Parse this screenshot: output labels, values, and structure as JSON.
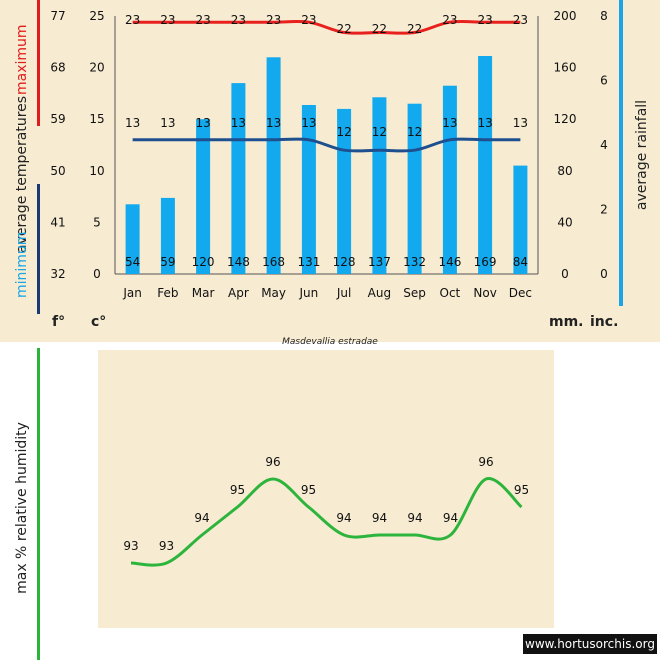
{
  "colors": {
    "paper": "#f7ecd2",
    "bar": "#12a9ee",
    "max_line": "#e8201e",
    "min_line": "#1e4f8f",
    "humidity_line": "#2db43c",
    "left_red_bar": "#e21c1c",
    "left_navy_bar": "#1b3a75",
    "right_blue_bar": "#1aa6e6",
    "humidity_bar": "#2ab43a",
    "watermark_bg": "#111111"
  },
  "labels": {
    "maximum": "maximum",
    "average_temperatures": "average  temperatures",
    "minimum": "minimum",
    "average_rainfall": "average rainfall",
    "unit_f": "f°",
    "unit_c": "c°",
    "unit_mm": "mm.",
    "unit_inc": "inc.",
    "species": "Masdevallia estradae",
    "humidity_axis": "max  %  relative  humidity",
    "watermark": "www.hortusorchis.org"
  },
  "chart_data": [
    {
      "type": "bar",
      "categories": [
        "Jan",
        "Feb",
        "Mar",
        "Apr",
        "May",
        "Jun",
        "Jul",
        "Aug",
        "Sep",
        "Oct",
        "Nov",
        "Dec"
      ],
      "series": [
        {
          "name": "average rainfall",
          "values": [
            54,
            59,
            120,
            148,
            168,
            131,
            128,
            137,
            132,
            146,
            169,
            84
          ]
        },
        {
          "name": "maximum",
          "values": [
            23,
            23,
            23,
            23,
            23,
            23,
            22,
            22,
            22,
            23,
            23,
            23
          ]
        },
        {
          "name": "minimum",
          "values": [
            13,
            13,
            13,
            13,
            13,
            13,
            12,
            12,
            12,
            13,
            13,
            13
          ]
        }
      ],
      "axes": {
        "f_ticks": [
          "77",
          "68",
          "59",
          "50",
          "41",
          "32"
        ],
        "c_ticks": [
          "25",
          "20",
          "15",
          "10",
          "5",
          "0"
        ],
        "mm_ticks": [
          "200",
          "160",
          "120",
          "80",
          "40",
          "0"
        ],
        "inc_ticks": [
          "8",
          "6",
          "4",
          "2",
          "0"
        ]
      },
      "ylim_c": [
        0,
        25
      ],
      "ylim_mm": [
        0,
        200
      ],
      "grid": false
    },
    {
      "type": "line",
      "categories": [
        "Jan",
        "Feb",
        "Mar",
        "Apr",
        "May",
        "Jun",
        "Jul",
        "Aug",
        "Sep",
        "Oct",
        "Nov",
        "Dec"
      ],
      "series": [
        {
          "name": "max % relative humidity",
          "values": [
            93,
            93,
            94,
            95,
            96,
            95,
            94,
            94,
            94,
            94,
            96,
            95
          ]
        }
      ],
      "grid": false
    }
  ]
}
